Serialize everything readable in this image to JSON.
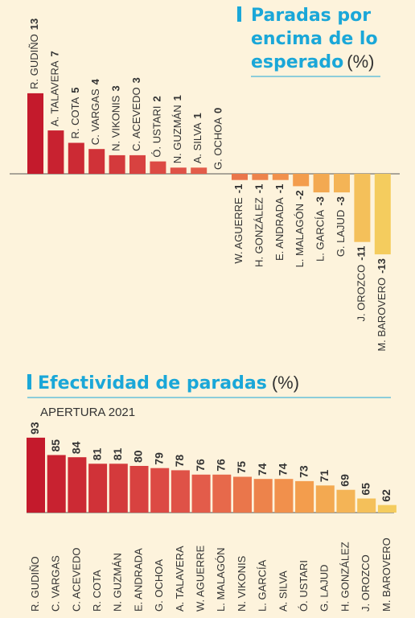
{
  "chart_data": [
    {
      "type": "bar",
      "title_bold_lines": [
        "Paradas por",
        "encima de lo",
        "esperado"
      ],
      "title_unit": "(%)",
      "categories": [
        "R. GUDIÑO",
        "A. TALAVERA",
        "R. COTA",
        "C. VARGAS",
        "N. VIKONIS",
        "C. ACEVEDO",
        "Ó. USTARI",
        "N. GUZMÁN",
        "A. SILVA",
        "G. OCHOA",
        "W. AGUERRE",
        "H. GONZÁLEZ",
        "E. ANDRADA",
        "L. MALAGÓN",
        "L. GARCÍA",
        "G. LAJUD",
        "J. OROZCO",
        "M. BAROVERO"
      ],
      "values": [
        13,
        7,
        5,
        4,
        3,
        3,
        2,
        1,
        1,
        0,
        -1,
        -1,
        -1,
        -2,
        -3,
        -3,
        -11,
        -13
      ],
      "value_labels": [
        "13",
        "7",
        "5",
        "4",
        "3",
        "3",
        "2",
        "1",
        "1",
        "0",
        "-1",
        "-1",
        "-1",
        "-2",
        "-3",
        "-3",
        "-11",
        "-13"
      ]
    },
    {
      "type": "bar",
      "title_bold": "Efectividad de paradas",
      "title_unit": "(%)",
      "subtitle": "APERTURA 2021",
      "categories": [
        "R. GUDIÑO",
        "C. VARGAS",
        "C. ACEVEDO",
        "R. COTA",
        "N. GUZMÁN",
        "E. ANDRADA",
        "G. OCHOA",
        "A. TALAVERA",
        "W. AGUERRE",
        "L. MALAGÓN",
        "N. VIKONIS",
        "L. GARCÍA",
        "A. SILVA",
        "Ó. USTARI",
        "G. LAJUD",
        "H. GONZÁLEZ",
        "J. OROZCO",
        "M. BAROVERO"
      ],
      "values": [
        93,
        85,
        84,
        81,
        81,
        80,
        79,
        78,
        76,
        76,
        75,
        74,
        74,
        73,
        71,
        69,
        65,
        62
      ]
    }
  ],
  "colors": {
    "accent": "#1aa7d8",
    "dark": "#333333",
    "background": "#fdf3dc"
  }
}
